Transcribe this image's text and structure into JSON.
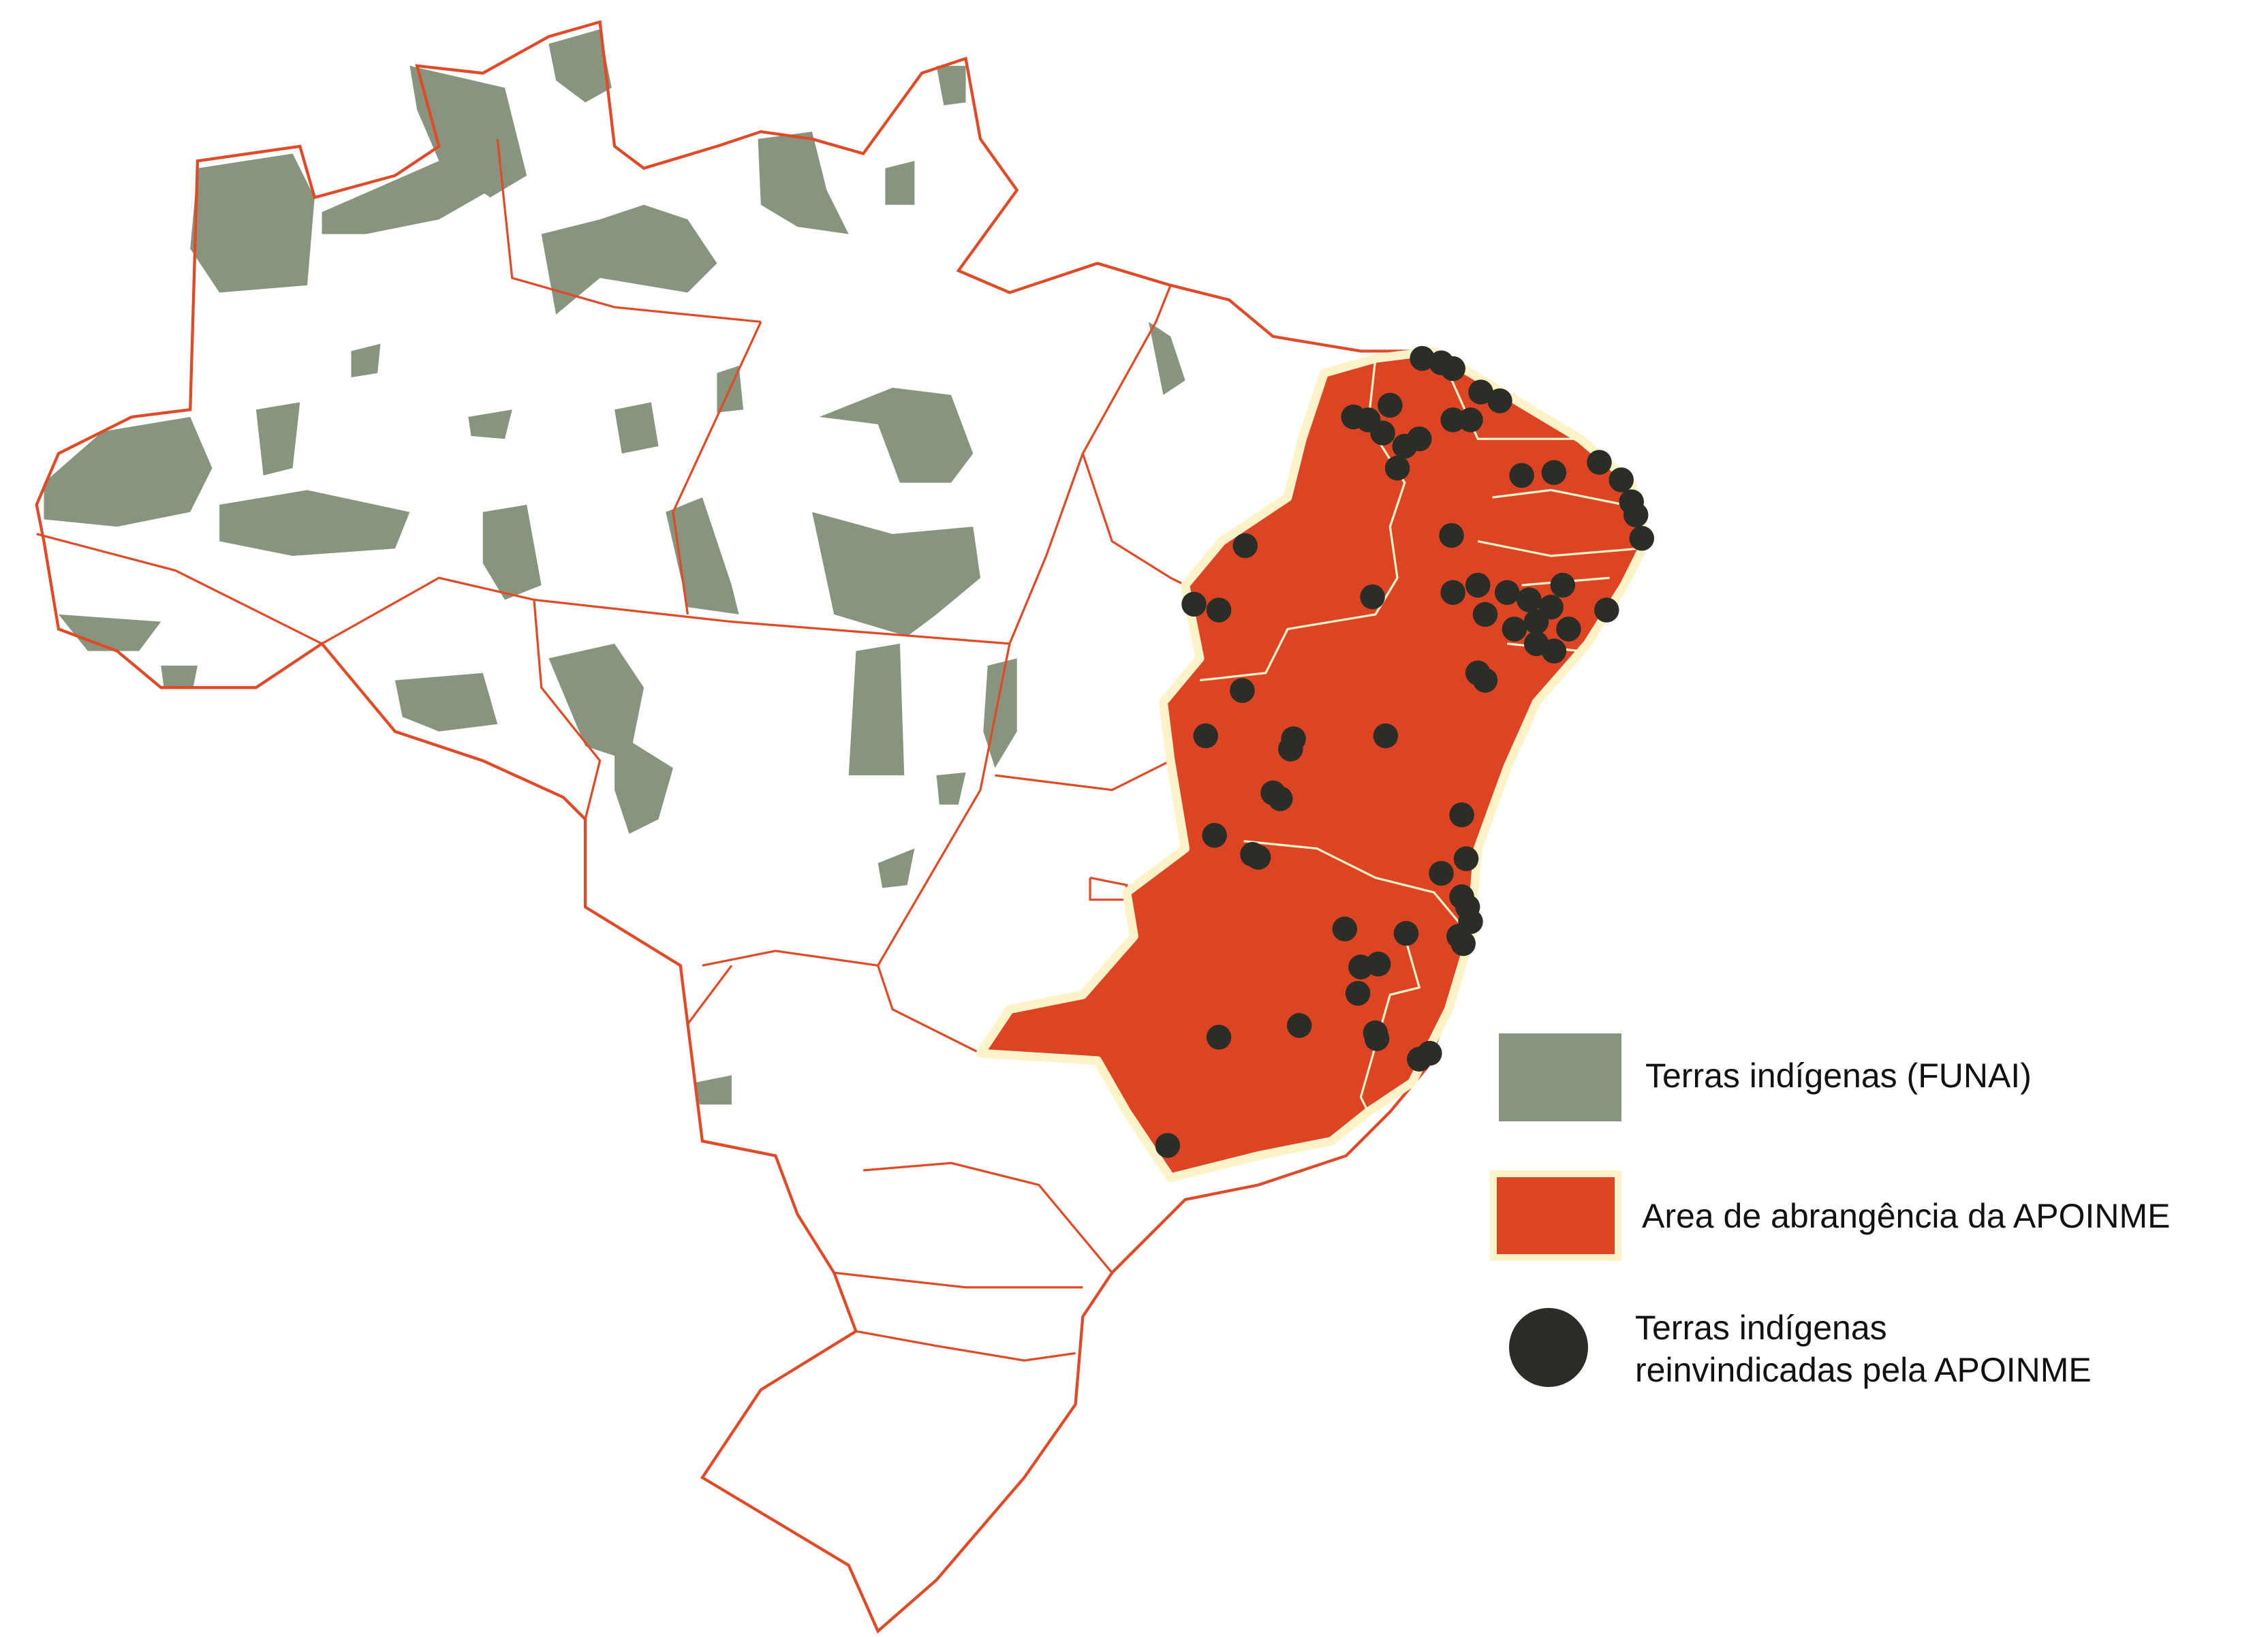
{
  "colors": {
    "indigenous_land": "#87957f",
    "apoinme_area": "#dc4424",
    "apoinme_halo": "#fdf3c8",
    "claimed_land_dot": "#2b2e26",
    "state_border": "#e04a26",
    "background": "#ffffff"
  },
  "legend": {
    "items": [
      {
        "label": "Terras indígenas (FUNAI)",
        "symbol": "gray-square"
      },
      {
        "label": "Area de abrangência da APOINME",
        "symbol": "red-square-cream-border"
      },
      {
        "label_line1": "Terras indígenas",
        "label_line2": "reinvindicadas pela APOINME",
        "symbol": "dark-circle"
      }
    ]
  }
}
